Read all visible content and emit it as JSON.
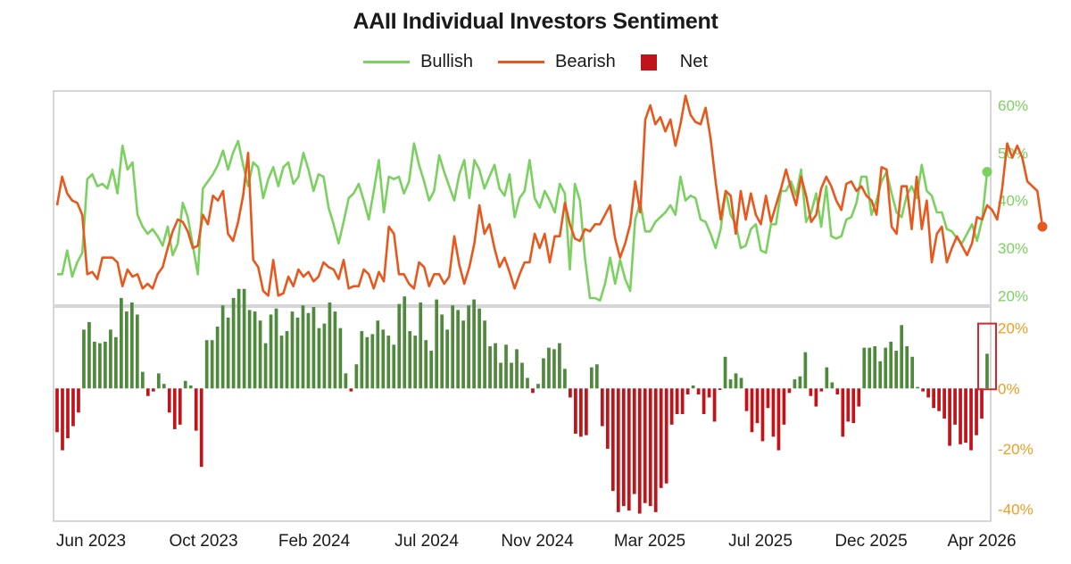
{
  "chart_data": [
    {
      "type": "line",
      "title": "AAII Individual Investors Sentiment",
      "legend": [
        {
          "name": "Bullish",
          "color": "#7bd15f",
          "shape": "line"
        },
        {
          "name": "Bearish",
          "color": "#e8581c",
          "shape": "line"
        },
        {
          "name": "Net",
          "color": "#c0141b",
          "shape": "box"
        }
      ],
      "legend_position": "top-center",
      "y_axis_side": "right",
      "ylim": [
        18,
        63
      ],
      "y_ticks": [
        "60%",
        "50%",
        "40%",
        "30%",
        "20%"
      ],
      "y_tick_values": [
        60,
        50,
        40,
        30,
        20
      ],
      "y_tick_color": "#7bd15f",
      "x_ticks": [
        "Jun 2023",
        "Oct 2023",
        "Feb 2024",
        "Jul 2024",
        "Nov 2024",
        "Mar 2025",
        "Jul 2025",
        "Dec 2025",
        "Apr 2026"
      ],
      "grid": false,
      "series": [
        {
          "name": "Bullish",
          "color": "#7bd15f",
          "values": [
            24.5,
            24.5,
            29.5,
            24,
            27,
            29,
            44.5,
            45.5,
            43,
            43.5,
            42.5,
            46.5,
            41.5,
            51.5,
            46.5,
            48,
            37,
            34.5,
            33,
            34,
            32.5,
            30.5,
            34.5,
            28.5,
            31,
            39.5,
            36.5,
            30.5,
            24.5,
            42.5,
            44,
            45.5,
            47.5,
            50.5,
            46.5,
            50,
            52.5,
            47.5,
            43,
            48,
            47,
            40.5,
            44.5,
            47,
            43,
            47,
            48,
            43.5,
            45,
            50,
            46.5,
            42,
            45.5,
            45,
            38.5,
            35,
            31,
            35.5,
            40.5,
            41.5,
            43.5,
            40,
            36,
            42,
            48.5,
            37.5,
            45,
            44.5,
            45,
            41.5,
            44,
            52,
            47.5,
            44,
            40,
            42,
            49.5,
            46,
            43,
            40,
            45.5,
            48.5,
            40.5,
            48.5,
            46.5,
            42.5,
            45,
            47.5,
            42.5,
            41,
            45.5,
            36.5,
            40.5,
            42,
            48.5,
            40.5,
            38.5,
            42,
            40,
            37.5,
            43.5,
            41.5,
            25.5,
            43.5,
            40,
            28,
            19.5,
            19.5,
            19,
            22.5,
            28,
            22.5,
            27.5,
            23.5,
            21,
            36,
            39.5,
            33.5,
            33.5,
            35.5,
            36.5,
            37.5,
            39,
            37,
            45,
            40,
            41,
            40.5,
            36,
            35.5,
            33,
            30,
            34,
            42,
            37,
            35,
            30,
            30.5,
            34,
            35,
            29.5,
            29,
            35,
            35,
            42,
            42,
            44,
            41,
            46.5,
            35.5,
            37.5,
            41.5,
            34.5,
            43,
            32.5,
            32,
            32.5,
            36,
            36.5,
            39.5,
            45,
            45,
            37,
            40,
            44,
            46,
            41.5,
            37.5,
            36.5,
            41,
            43,
            40.5,
            47.5,
            42,
            41,
            37.5,
            37.5,
            34,
            33.5,
            32,
            31,
            33,
            35,
            31.5,
            36,
            46
          ]
        },
        {
          "name": "Bearish",
          "color": "#e8581c",
          "values": [
            39,
            45,
            41.5,
            40,
            39.5,
            37,
            24.5,
            25,
            23.5,
            28,
            28,
            28,
            27,
            22,
            25.5,
            24,
            24.5,
            21.5,
            22.5,
            21.5,
            24.5,
            26,
            30,
            33.5,
            36,
            35.5,
            33.5,
            30,
            30.5,
            37,
            35,
            41,
            40,
            42,
            33,
            31.5,
            35.5,
            41,
            50,
            27.5,
            26,
            21,
            20,
            27.5,
            20,
            20.5,
            24,
            22,
            25.5,
            24,
            25,
            23,
            24,
            27,
            26,
            25.5,
            23.5,
            27.5,
            21.5,
            22,
            22,
            25.5,
            24.5,
            21.5,
            25,
            23,
            34.5,
            33,
            24.5,
            24.5,
            22.5,
            21.5,
            27,
            26,
            22,
            24.5,
            24.5,
            22.5,
            24,
            32.5,
            26.5,
            22.5,
            26,
            31,
            39,
            33,
            35,
            30,
            26,
            28,
            25,
            21.5,
            24.5,
            27,
            27,
            33,
            30,
            33,
            27,
            32.5,
            32.5,
            39.5,
            35,
            32,
            31.5,
            34,
            33.5,
            35,
            35,
            37,
            39,
            32,
            28,
            31,
            35,
            44,
            37.5,
            57,
            60,
            56,
            57.5,
            54.5,
            57,
            51.5,
            56,
            62,
            58,
            56.5,
            56,
            59.5,
            53,
            44,
            36,
            42,
            41,
            33,
            42,
            36,
            41.5,
            37,
            35,
            41,
            35.5,
            39,
            42.5,
            46.5,
            42.5,
            39,
            45,
            41,
            35.5,
            37,
            42.5,
            45,
            43,
            40,
            38,
            43.5,
            44,
            42,
            43,
            41,
            40,
            37,
            47,
            46.5,
            34.5,
            33,
            43,
            43,
            34,
            45,
            34,
            40,
            27,
            33,
            34.5,
            27,
            30,
            32.5,
            30.5,
            28.5,
            31,
            36.5,
            36,
            39,
            38,
            36,
            42.5,
            52,
            49,
            51.5,
            49,
            44,
            43,
            42,
            34.5
          ]
        }
      ]
    },
    {
      "type": "bar",
      "ylim": [
        -44,
        27
      ],
      "y_ticks": [
        "20%",
        "0%",
        "-20%",
        "-40%"
      ],
      "y_tick_values": [
        20,
        0,
        -20,
        -40
      ],
      "y_tick_color": "#f29c1f",
      "highlight_last": true,
      "highlight_color": "#d9242b",
      "series": [
        {
          "name": "Net",
          "positive_color": "#4f8a3c",
          "negative_color": "#c0141b",
          "values": [
            -14.5,
            -20.5,
            -16.5,
            -12.5,
            -8,
            19.5,
            22,
            15.5,
            15,
            15.5,
            19.5,
            17,
            30,
            25.5,
            28.5,
            24.5,
            5.5,
            -2.5,
            -1,
            5,
            1.5,
            -8,
            -13.5,
            -12,
            2.5,
            1,
            -14,
            -26,
            16,
            16,
            20.5,
            27.5,
            23.5,
            30,
            33,
            33,
            26,
            25.5,
            22.5,
            15,
            24.5,
            26.5,
            17.5,
            19,
            25.5,
            23.5,
            27.5,
            25,
            27,
            20,
            21.5,
            28.5,
            25.5,
            20,
            5,
            -1,
            8,
            19,
            17,
            18,
            22.5,
            19.5,
            17.5,
            14.5,
            28,
            30.5,
            19,
            17.5,
            28.5,
            16,
            12.5,
            29.5,
            24.5,
            19.5,
            27.5,
            26,
            22.5,
            27.5,
            29.5,
            26.5,
            22.5,
            14,
            15,
            8.5,
            14.5,
            8.5,
            13,
            8.5,
            3.5,
            -1.5,
            1.5,
            10,
            13.5,
            13,
            15,
            6.5,
            -3,
            -15,
            -16,
            -15.5,
            7,
            8,
            -12.5,
            -20,
            -34,
            -41,
            -39,
            -40.5,
            -35,
            -41.5,
            -38,
            -39,
            -41,
            -33,
            -31.5,
            -12,
            -8.5,
            -8.5,
            -2,
            1,
            -2,
            -8.5,
            -3,
            -11,
            -0.5,
            10.5,
            3,
            5,
            3.5,
            -7.5,
            -14.5,
            -11.5,
            -17.5,
            -6.5,
            -16,
            -20.5,
            -12,
            -1.5,
            3,
            4,
            12,
            -2.5,
            -6,
            -1,
            7,
            2,
            -2,
            -16,
            -11,
            -11.5,
            -6,
            13.5,
            13.5,
            14,
            9,
            13.5,
            15.5,
            12.5,
            21,
            14,
            10.5,
            0.5,
            -1,
            -3,
            -6.5,
            -7.5,
            -10,
            -19,
            -12,
            -18.5,
            -18,
            -20.5,
            -15.5,
            -10,
            11.5
          ]
        }
      ]
    }
  ]
}
